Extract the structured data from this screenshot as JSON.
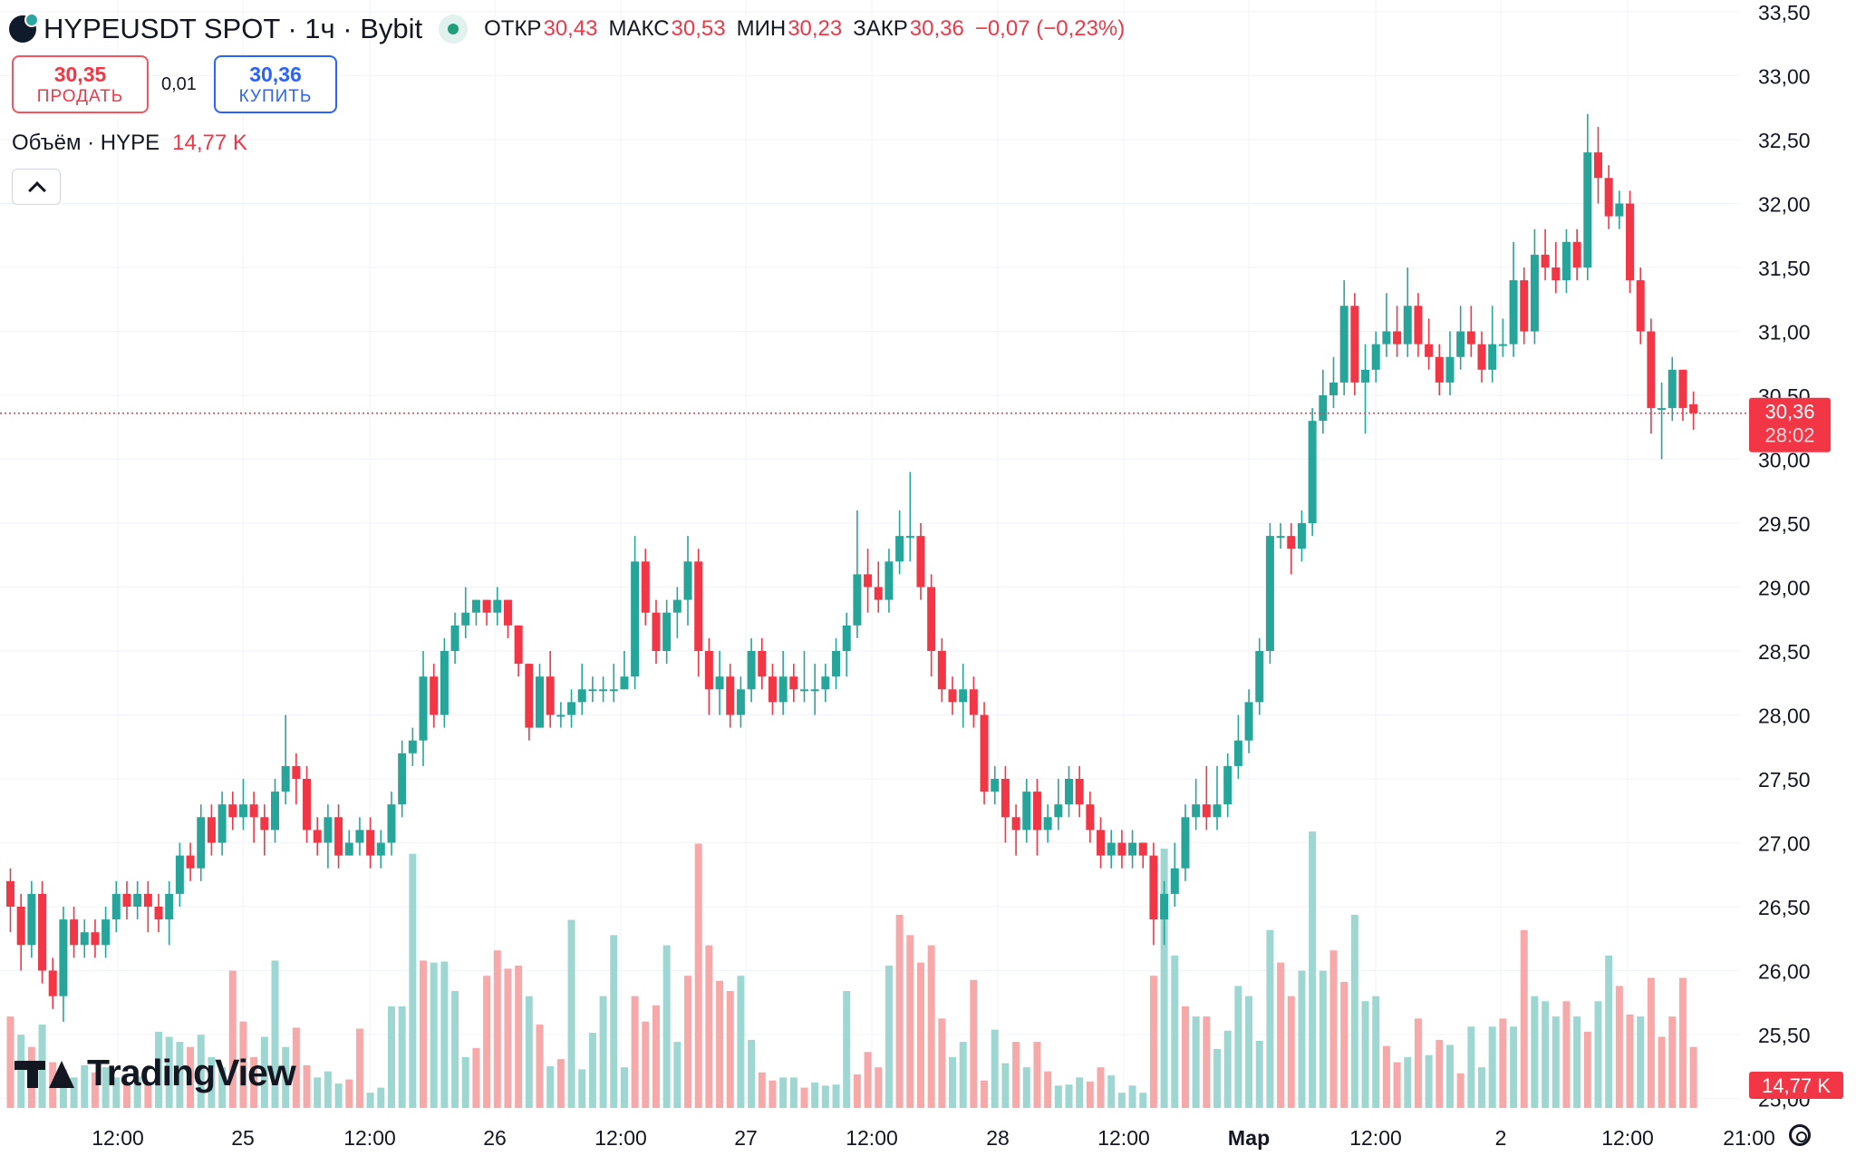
{
  "header": {
    "symbol": "HYPEUSDT SPOT · 1ч · Bybit",
    "open_label": "ОТКР",
    "open": "30,43",
    "high_label": "МАКС",
    "high": "30,53",
    "low_label": "МИН",
    "low": "30,23",
    "close_label": "ЗАКР",
    "close": "30,36",
    "change": "−0,07 (−0,23%)"
  },
  "trade": {
    "sell_price": "30,35",
    "sell_label": "ПРОДАТЬ",
    "spread": "0,01",
    "buy_price": "30,36",
    "buy_label": "КУПИТЬ"
  },
  "volume": {
    "label": "Объём · HYPE",
    "value": "14,77 K"
  },
  "watermark": "TradingView",
  "icons": {
    "logo": "hype-logo-icon",
    "status": "market-open-dot-icon",
    "collapse": "chevron-up-icon",
    "settings": "gear-icon"
  },
  "colors": {
    "up": "#26a69a",
    "down": "#f23645",
    "up_volume": "#9ed7d1",
    "down_volume": "#f7a9a9",
    "grid": "#f0f3fa",
    "price_label": "#f23645"
  },
  "chart_data": {
    "type": "candlestick",
    "interval": "1h",
    "y_axis_ticks": [
      "25,00",
      "25,50",
      "26,00",
      "26,50",
      "27,00",
      "27,50",
      "28,00",
      "28,50",
      "29,00",
      "29,50",
      "30,00",
      "30,50",
      "31,00",
      "31,50",
      "32,00",
      "32,50",
      "33,00",
      "33,50"
    ],
    "ylim": [
      25.0,
      33.5
    ],
    "x_axis_ticks": [
      "12:00",
      "25",
      "12:00",
      "26",
      "12:00",
      "27",
      "12:00",
      "28",
      "12:00",
      "Мар",
      "12:00",
      "2",
      "12:00",
      "21:00"
    ],
    "last_price": {
      "value": 30.36,
      "label": "30,36",
      "countdown": "28:02"
    },
    "last_volume_label": "14,77 K",
    "grid": true,
    "candles": [
      [
        26.7,
        26.5,
        26.3,
        26.8
      ],
      [
        26.5,
        26.2,
        26.0,
        26.6
      ],
      [
        26.2,
        26.6,
        26.1,
        26.7
      ],
      [
        26.6,
        26.0,
        25.9,
        26.7
      ],
      [
        26.0,
        25.8,
        25.7,
        26.1
      ],
      [
        25.8,
        26.4,
        25.6,
        26.5
      ],
      [
        26.4,
        26.2,
        26.1,
        26.5
      ],
      [
        26.2,
        26.3,
        26.1,
        26.4
      ],
      [
        26.3,
        26.2,
        26.1,
        26.4
      ],
      [
        26.2,
        26.4,
        26.1,
        26.5
      ],
      [
        26.4,
        26.6,
        26.3,
        26.7
      ],
      [
        26.6,
        26.5,
        26.4,
        26.7
      ],
      [
        26.5,
        26.6,
        26.4,
        26.7
      ],
      [
        26.6,
        26.5,
        26.3,
        26.7
      ],
      [
        26.5,
        26.4,
        26.3,
        26.6
      ],
      [
        26.4,
        26.6,
        26.2,
        26.7
      ],
      [
        26.6,
        26.9,
        26.5,
        27.0
      ],
      [
        26.9,
        26.8,
        26.7,
        27.0
      ],
      [
        26.8,
        27.2,
        26.7,
        27.3
      ],
      [
        27.2,
        27.0,
        26.9,
        27.3
      ],
      [
        27.0,
        27.3,
        26.9,
        27.4
      ],
      [
        27.3,
        27.2,
        27.1,
        27.4
      ],
      [
        27.2,
        27.3,
        27.1,
        27.5
      ],
      [
        27.3,
        27.2,
        27.0,
        27.4
      ],
      [
        27.2,
        27.1,
        26.9,
        27.3
      ],
      [
        27.1,
        27.4,
        27.0,
        27.5
      ],
      [
        27.4,
        27.6,
        27.3,
        28.0
      ],
      [
        27.6,
        27.5,
        27.3,
        27.7
      ],
      [
        27.5,
        27.1,
        27.0,
        27.6
      ],
      [
        27.1,
        27.0,
        26.9,
        27.2
      ],
      [
        27.0,
        27.2,
        26.8,
        27.3
      ],
      [
        27.2,
        26.9,
        26.8,
        27.3
      ],
      [
        26.9,
        27.0,
        26.9,
        27.1
      ],
      [
        27.0,
        27.1,
        26.9,
        27.2
      ],
      [
        27.1,
        26.9,
        26.8,
        27.2
      ],
      [
        26.9,
        27.0,
        26.8,
        27.1
      ],
      [
        27.0,
        27.3,
        26.9,
        27.4
      ],
      [
        27.3,
        27.7,
        27.2,
        27.8
      ],
      [
        27.7,
        27.8,
        27.6,
        27.9
      ],
      [
        27.8,
        28.3,
        27.6,
        28.5
      ],
      [
        28.3,
        28.0,
        27.9,
        28.4
      ],
      [
        28.0,
        28.5,
        27.9,
        28.6
      ],
      [
        28.5,
        28.7,
        28.4,
        28.8
      ],
      [
        28.7,
        28.8,
        28.6,
        29.0
      ],
      [
        28.8,
        28.9,
        28.7,
        28.9
      ],
      [
        28.9,
        28.8,
        28.7,
        28.9
      ],
      [
        28.8,
        28.9,
        28.7,
        29.0
      ],
      [
        28.9,
        28.7,
        28.6,
        28.9
      ],
      [
        28.7,
        28.4,
        28.3,
        28.7
      ],
      [
        28.4,
        27.9,
        27.8,
        28.4
      ],
      [
        27.9,
        28.3,
        27.9,
        28.4
      ],
      [
        28.3,
        28.0,
        27.9,
        28.5
      ],
      [
        28.0,
        28.0,
        27.9,
        28.1
      ],
      [
        28.0,
        28.1,
        27.9,
        28.2
      ],
      [
        28.1,
        28.2,
        28.0,
        28.4
      ],
      [
        28.2,
        28.2,
        28.1,
        28.3
      ],
      [
        28.2,
        28.2,
        28.1,
        28.3
      ],
      [
        28.2,
        28.2,
        28.1,
        28.4
      ],
      [
        28.2,
        28.3,
        28.2,
        28.5
      ],
      [
        28.3,
        29.2,
        28.2,
        29.4
      ],
      [
        29.2,
        28.8,
        28.7,
        29.3
      ],
      [
        28.8,
        28.5,
        28.4,
        28.9
      ],
      [
        28.5,
        28.8,
        28.4,
        28.9
      ],
      [
        28.8,
        28.9,
        28.6,
        29.0
      ],
      [
        28.9,
        29.2,
        28.7,
        29.4
      ],
      [
        29.2,
        28.5,
        28.3,
        29.3
      ],
      [
        28.5,
        28.2,
        28.0,
        28.6
      ],
      [
        28.2,
        28.3,
        28.0,
        28.5
      ],
      [
        28.3,
        28.0,
        27.9,
        28.4
      ],
      [
        28.0,
        28.2,
        27.9,
        28.3
      ],
      [
        28.2,
        28.5,
        28.1,
        28.6
      ],
      [
        28.5,
        28.3,
        28.2,
        28.6
      ],
      [
        28.3,
        28.1,
        28.0,
        28.4
      ],
      [
        28.1,
        28.3,
        28.0,
        28.5
      ],
      [
        28.3,
        28.2,
        28.1,
        28.4
      ],
      [
        28.2,
        28.2,
        28.1,
        28.5
      ],
      [
        28.2,
        28.2,
        28.0,
        28.4
      ],
      [
        28.2,
        28.3,
        28.1,
        28.4
      ],
      [
        28.3,
        28.5,
        28.2,
        28.6
      ],
      [
        28.5,
        28.7,
        28.3,
        28.8
      ],
      [
        28.7,
        29.1,
        28.6,
        29.6
      ],
      [
        29.1,
        29.0,
        28.8,
        29.3
      ],
      [
        29.0,
        28.9,
        28.8,
        29.2
      ],
      [
        28.9,
        29.2,
        28.8,
        29.3
      ],
      [
        29.2,
        29.4,
        29.1,
        29.6
      ],
      [
        29.4,
        29.4,
        29.2,
        29.9
      ],
      [
        29.4,
        29.0,
        28.9,
        29.5
      ],
      [
        29.0,
        28.5,
        28.3,
        29.1
      ],
      [
        28.5,
        28.2,
        28.1,
        28.6
      ],
      [
        28.2,
        28.1,
        28.0,
        28.3
      ],
      [
        28.1,
        28.2,
        27.9,
        28.4
      ],
      [
        28.2,
        28.0,
        27.9,
        28.3
      ],
      [
        28.0,
        27.4,
        27.3,
        28.1
      ],
      [
        27.4,
        27.5,
        27.3,
        27.6
      ],
      [
        27.5,
        27.2,
        27.0,
        27.6
      ],
      [
        27.2,
        27.1,
        26.9,
        27.3
      ],
      [
        27.1,
        27.4,
        27.0,
        27.5
      ],
      [
        27.4,
        27.1,
        26.9,
        27.5
      ],
      [
        27.1,
        27.2,
        27.0,
        27.3
      ],
      [
        27.2,
        27.3,
        27.1,
        27.5
      ],
      [
        27.3,
        27.5,
        27.2,
        27.6
      ],
      [
        27.5,
        27.3,
        27.2,
        27.6
      ],
      [
        27.3,
        27.1,
        27.0,
        27.4
      ],
      [
        27.1,
        26.9,
        26.8,
        27.2
      ],
      [
        26.9,
        27.0,
        26.8,
        27.1
      ],
      [
        27.0,
        26.9,
        26.8,
        27.1
      ],
      [
        26.9,
        27.0,
        26.8,
        27.1
      ],
      [
        27.0,
        26.9,
        26.8,
        27.0
      ],
      [
        26.9,
        26.4,
        26.2,
        27.0
      ],
      [
        26.4,
        26.6,
        26.2,
        26.7
      ],
      [
        26.6,
        26.8,
        26.5,
        27.0
      ],
      [
        26.8,
        27.2,
        26.7,
        27.3
      ],
      [
        27.2,
        27.3,
        27.1,
        27.5
      ],
      [
        27.3,
        27.2,
        27.1,
        27.6
      ],
      [
        27.2,
        27.3,
        27.1,
        27.6
      ],
      [
        27.3,
        27.6,
        27.2,
        27.7
      ],
      [
        27.6,
        27.8,
        27.5,
        28.0
      ],
      [
        27.8,
        28.1,
        27.7,
        28.2
      ],
      [
        28.1,
        28.5,
        28.0,
        28.6
      ],
      [
        28.5,
        29.4,
        28.4,
        29.5
      ],
      [
        29.4,
        29.4,
        29.3,
        29.5
      ],
      [
        29.4,
        29.3,
        29.1,
        29.5
      ],
      [
        29.3,
        29.5,
        29.2,
        29.6
      ],
      [
        29.5,
        30.3,
        29.4,
        30.4
      ],
      [
        30.3,
        30.5,
        30.2,
        30.7
      ],
      [
        30.5,
        30.6,
        30.4,
        30.8
      ],
      [
        30.6,
        31.2,
        30.5,
        31.4
      ],
      [
        31.2,
        30.6,
        30.5,
        31.3
      ],
      [
        30.6,
        30.7,
        30.2,
        30.9
      ],
      [
        30.7,
        30.9,
        30.6,
        31.0
      ],
      [
        30.9,
        31.0,
        30.8,
        31.3
      ],
      [
        31.0,
        30.9,
        30.8,
        31.2
      ],
      [
        30.9,
        31.2,
        30.8,
        31.5
      ],
      [
        31.2,
        30.9,
        30.8,
        31.3
      ],
      [
        30.9,
        30.8,
        30.7,
        31.1
      ],
      [
        30.8,
        30.6,
        30.5,
        30.9
      ],
      [
        30.6,
        30.8,
        30.5,
        31.0
      ],
      [
        30.8,
        31.0,
        30.7,
        31.2
      ],
      [
        31.0,
        30.9,
        30.8,
        31.2
      ],
      [
        30.9,
        30.7,
        30.6,
        31.0
      ],
      [
        30.7,
        30.9,
        30.6,
        31.2
      ],
      [
        30.9,
        30.9,
        30.8,
        31.1
      ],
      [
        30.9,
        31.4,
        30.8,
        31.7
      ],
      [
        31.4,
        31.0,
        30.9,
        31.5
      ],
      [
        31.0,
        31.6,
        30.9,
        31.8
      ],
      [
        31.6,
        31.5,
        31.4,
        31.8
      ],
      [
        31.5,
        31.4,
        31.3,
        31.7
      ],
      [
        31.4,
        31.7,
        31.3,
        31.8
      ],
      [
        31.7,
        31.5,
        31.4,
        31.8
      ],
      [
        31.5,
        32.4,
        31.4,
        32.7
      ],
      [
        32.4,
        32.2,
        32.0,
        32.6
      ],
      [
        32.2,
        31.9,
        31.8,
        32.3
      ],
      [
        31.9,
        32.0,
        31.8,
        32.1
      ],
      [
        32.0,
        31.4,
        31.3,
        32.1
      ],
      [
        31.4,
        31.0,
        30.9,
        31.5
      ],
      [
        31.0,
        30.4,
        30.2,
        31.1
      ],
      [
        30.4,
        30.4,
        30.0,
        30.6
      ],
      [
        30.4,
        30.7,
        30.3,
        30.8
      ],
      [
        30.7,
        30.4,
        30.3,
        30.7
      ],
      [
        30.43,
        30.36,
        30.23,
        30.53
      ]
    ],
    "volume": [
      [
        900,
        "d"
      ],
      [
        720,
        "u"
      ],
      [
        600,
        "d"
      ],
      [
        820,
        "u"
      ],
      [
        450,
        "d"
      ],
      [
        380,
        "u"
      ],
      [
        300,
        "u"
      ],
      [
        420,
        "u"
      ],
      [
        350,
        "d"
      ],
      [
        400,
        "u"
      ],
      [
        300,
        "u"
      ],
      [
        240,
        "d"
      ],
      [
        310,
        "u"
      ],
      [
        240,
        "d"
      ],
      [
        750,
        "u"
      ],
      [
        700,
        "u"
      ],
      [
        650,
        "u"
      ],
      [
        600,
        "d"
      ],
      [
        720,
        "u"
      ],
      [
        500,
        "u"
      ],
      [
        400,
        "u"
      ],
      [
        1350,
        "d"
      ],
      [
        850,
        "d"
      ],
      [
        500,
        "d"
      ],
      [
        700,
        "u"
      ],
      [
        1450,
        "u"
      ],
      [
        600,
        "u"
      ],
      [
        790,
        "d"
      ],
      [
        420,
        "d"
      ],
      [
        300,
        "u"
      ],
      [
        360,
        "u"
      ],
      [
        240,
        "u"
      ],
      [
        280,
        "d"
      ],
      [
        780,
        "d"
      ],
      [
        150,
        "u"
      ],
      [
        200,
        "u"
      ],
      [
        1000,
        "u"
      ],
      [
        1000,
        "u"
      ],
      [
        2500,
        "u"
      ],
      [
        1450,
        "d"
      ],
      [
        1430,
        "u"
      ],
      [
        1440,
        "u"
      ],
      [
        1150,
        "u"
      ],
      [
        500,
        "u"
      ],
      [
        590,
        "d"
      ],
      [
        1300,
        "d"
      ],
      [
        1550,
        "d"
      ],
      [
        1370,
        "d"
      ],
      [
        1400,
        "d"
      ],
      [
        1100,
        "u"
      ],
      [
        820,
        "d"
      ],
      [
        410,
        "u"
      ],
      [
        480,
        "d"
      ],
      [
        1850,
        "u"
      ],
      [
        380,
        "u"
      ],
      [
        740,
        "u"
      ],
      [
        1100,
        "u"
      ],
      [
        1700,
        "u"
      ],
      [
        400,
        "u"
      ],
      [
        1100,
        "d"
      ],
      [
        850,
        "d"
      ],
      [
        1010,
        "d"
      ],
      [
        1600,
        "u"
      ],
      [
        650,
        "u"
      ],
      [
        1300,
        "d"
      ],
      [
        2600,
        "d"
      ],
      [
        1600,
        "d"
      ],
      [
        1250,
        "d"
      ],
      [
        1150,
        "d"
      ],
      [
        1300,
        "u"
      ],
      [
        670,
        "u"
      ],
      [
        350,
        "d"
      ],
      [
        270,
        "d"
      ],
      [
        300,
        "u"
      ],
      [
        300,
        "u"
      ],
      [
        200,
        "d"
      ],
      [
        250,
        "u"
      ],
      [
        220,
        "u"
      ],
      [
        230,
        "u"
      ],
      [
        1150,
        "u"
      ],
      [
        330,
        "d"
      ],
      [
        550,
        "d"
      ],
      [
        400,
        "d"
      ],
      [
        1400,
        "u"
      ],
      [
        1900,
        "d"
      ],
      [
        1700,
        "d"
      ],
      [
        1430,
        "d"
      ],
      [
        1600,
        "d"
      ],
      [
        880,
        "d"
      ],
      [
        500,
        "u"
      ],
      [
        650,
        "u"
      ],
      [
        1260,
        "d"
      ],
      [
        270,
        "d"
      ],
      [
        770,
        "u"
      ],
      [
        440,
        "u"
      ],
      [
        650,
        "d"
      ],
      [
        400,
        "u"
      ],
      [
        650,
        "d"
      ],
      [
        360,
        "d"
      ],
      [
        220,
        "u"
      ],
      [
        230,
        "u"
      ],
      [
        300,
        "u"
      ],
      [
        260,
        "d"
      ],
      [
        400,
        "d"
      ],
      [
        320,
        "u"
      ],
      [
        150,
        "u"
      ],
      [
        220,
        "u"
      ],
      [
        150,
        "u"
      ],
      [
        1300,
        "d"
      ],
      [
        2550,
        "u"
      ],
      [
        1500,
        "u"
      ],
      [
        1000,
        "d"
      ],
      [
        900,
        "u"
      ],
      [
        900,
        "d"
      ],
      [
        580,
        "u"
      ],
      [
        760,
        "u"
      ],
      [
        1200,
        "u"
      ],
      [
        1100,
        "u"
      ],
      [
        660,
        "u"
      ],
      [
        1750,
        "u"
      ],
      [
        1430,
        "d"
      ],
      [
        1100,
        "d"
      ],
      [
        1350,
        "u"
      ],
      [
        2720,
        "u"
      ],
      [
        1350,
        "u"
      ],
      [
        1550,
        "d"
      ],
      [
        1240,
        "d"
      ],
      [
        1900,
        "u"
      ],
      [
        1050,
        "u"
      ],
      [
        1100,
        "u"
      ],
      [
        610,
        "d"
      ],
      [
        450,
        "d"
      ],
      [
        500,
        "u"
      ],
      [
        880,
        "d"
      ],
      [
        520,
        "u"
      ],
      [
        670,
        "d"
      ],
      [
        620,
        "u"
      ],
      [
        340,
        "d"
      ],
      [
        800,
        "u"
      ],
      [
        400,
        "u"
      ],
      [
        800,
        "u"
      ],
      [
        880,
        "d"
      ],
      [
        800,
        "u"
      ],
      [
        1750,
        "d"
      ],
      [
        1100,
        "u"
      ],
      [
        1050,
        "u"
      ],
      [
        900,
        "u"
      ],
      [
        1050,
        "d"
      ],
      [
        900,
        "u"
      ],
      [
        750,
        "d"
      ],
      [
        1050,
        "u"
      ],
      [
        1500,
        "u"
      ],
      [
        1200,
        "d"
      ],
      [
        920,
        "d"
      ],
      [
        900,
        "u"
      ],
      [
        1280,
        "d"
      ],
      [
        700,
        "d"
      ],
      [
        900,
        "d"
      ],
      [
        1280,
        "d"
      ],
      [
        600,
        "d"
      ]
    ]
  }
}
